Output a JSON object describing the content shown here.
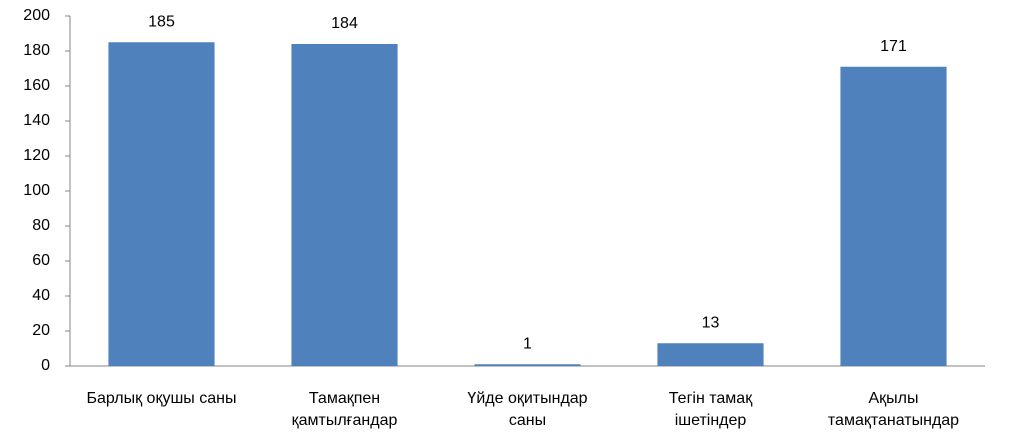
{
  "chart_data": {
    "type": "bar",
    "categories": [
      "Барлық оқушы саны",
      "Тамақпен қамтылғандар",
      "Үйде оқитындар саны",
      "Тегін тамақ ішетіндер",
      "Ақылы тамақтанатындар"
    ],
    "values": [
      185,
      184,
      1,
      13,
      171
    ],
    "color": "#4f81bd",
    "ylim": [
      0,
      200
    ],
    "yticks": [
      0,
      20,
      40,
      60,
      80,
      100,
      120,
      140,
      160,
      180,
      200
    ],
    "grid": false
  }
}
